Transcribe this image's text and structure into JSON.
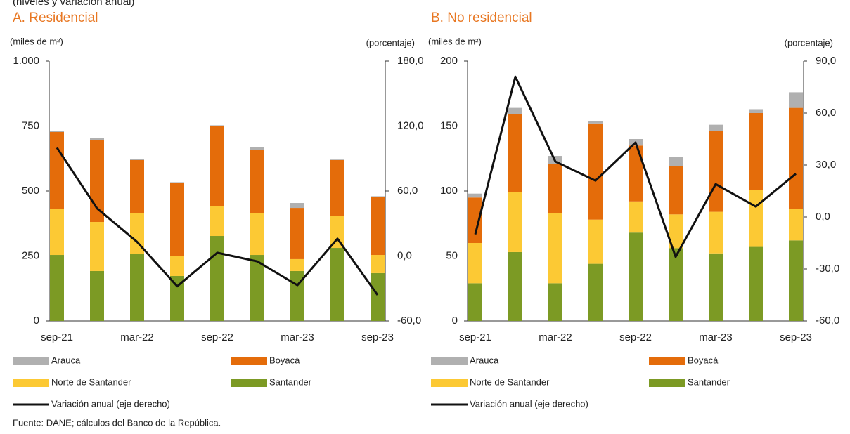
{
  "subtitle": "(niveles y variación anual)",
  "source": "Fuente: DANE; cálculos del Banco de la República.",
  "chart_data": [
    {
      "type": "bar",
      "title": "A. Residencial",
      "y_label": "(miles de m²)",
      "y2_label": "(porcentaje)",
      "categories": [
        "sep-21",
        null,
        "mar-22",
        null,
        "sep-22",
        null,
        "mar-23",
        null,
        "sep-23"
      ],
      "ylim": [
        0,
        1000
      ],
      "yticks": [
        0,
        250,
        500,
        750,
        {
          "value": 1000,
          "label": "1.000"
        }
      ],
      "y2lim": [
        -60,
        180
      ],
      "y2ticks": [
        {
          "value": -60,
          "label": "-60,0"
        },
        {
          "value": 0,
          "label": "0,0"
        },
        {
          "value": 60,
          "label": "60,0"
        },
        {
          "value": 120,
          "label": "120,0"
        },
        {
          "value": 180,
          "label": "180,0"
        }
      ],
      "series": [
        {
          "name": "Arauca",
          "color": "#b0b0b0",
          "values": [
            5,
            8,
            3,
            2,
            2,
            13,
            19,
            2,
            2
          ]
        },
        {
          "name": "Boyacá",
          "color": "#e46c0a",
          "values": [
            297,
            314,
            203,
            283,
            308,
            243,
            197,
            214,
            224
          ]
        },
        {
          "name": "Norte de Santander",
          "color": "#fcc934",
          "values": [
            176,
            189,
            159,
            76,
            116,
            160,
            46,
            124,
            70
          ]
        },
        {
          "name": "Santander",
          "color": "#7c9a24",
          "values": [
            254,
            192,
            257,
            173,
            327,
            254,
            192,
            281,
            184
          ]
        },
        {
          "name": "Variación anual (eje derecho)",
          "color": "#111111",
          "axis": "y2",
          "values": [
            100,
            44,
            13,
            -28,
            3,
            -5,
            -27,
            16,
            -36
          ]
        }
      ]
    },
    {
      "type": "bar",
      "title": "B. No residencial",
      "y_label": "(miles de m²)",
      "y2_label": "(porcentaje)",
      "categories": [
        "sep-21",
        null,
        "mar-22",
        null,
        "sep-22",
        null,
        "mar-23",
        null,
        "sep-23"
      ],
      "ylim": [
        0,
        200
      ],
      "yticks": [
        0,
        50,
        100,
        150,
        200
      ],
      "y2lim": [
        -60,
        90
      ],
      "y2ticks": [
        {
          "value": -60,
          "label": "-60,0"
        },
        {
          "value": -30,
          "label": "-30,0"
        },
        {
          "value": 0,
          "label": "0,0"
        },
        {
          "value": 30,
          "label": "30,0"
        },
        {
          "value": 60,
          "label": "60,0"
        },
        {
          "value": 90,
          "label": "90,0"
        }
      ],
      "series": [
        {
          "name": "Arauca",
          "color": "#b0b0b0",
          "values": [
            3,
            5,
            6,
            2,
            5,
            7,
            5,
            3,
            12
          ]
        },
        {
          "name": "Boyacá",
          "color": "#e46c0a",
          "values": [
            35,
            60,
            38,
            74,
            43,
            37,
            62,
            59,
            78
          ]
        },
        {
          "name": "Norte de Santander",
          "color": "#fcc934",
          "values": [
            31,
            46,
            54,
            34,
            24,
            26,
            32,
            44,
            24
          ]
        },
        {
          "name": "Santander",
          "color": "#7c9a24",
          "values": [
            29,
            53,
            29,
            44,
            68,
            56,
            52,
            57,
            62
          ]
        },
        {
          "name": "Variación anual (eje derecho)",
          "color": "#111111",
          "axis": "y2",
          "values": [
            -10,
            81,
            32,
            21,
            43,
            -23,
            19,
            6,
            25
          ]
        }
      ]
    }
  ]
}
